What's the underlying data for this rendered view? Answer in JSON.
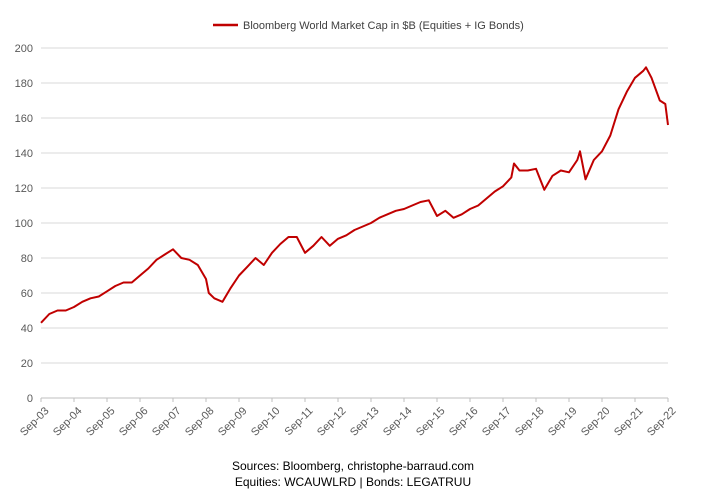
{
  "chart_data": {
    "type": "line",
    "series": [
      {
        "name": "Bloomberg World Market Cap in $B (Equities + IG Bonds)",
        "color": "#c00000",
        "points": [
          [
            "2003-09",
            43
          ],
          [
            "2003-12",
            48
          ],
          [
            "2004-03",
            50
          ],
          [
            "2004-06",
            50
          ],
          [
            "2004-09",
            52
          ],
          [
            "2004-12",
            55
          ],
          [
            "2005-03",
            57
          ],
          [
            "2005-06",
            58
          ],
          [
            "2005-09",
            61
          ],
          [
            "2005-12",
            64
          ],
          [
            "2006-03",
            66
          ],
          [
            "2006-06",
            66
          ],
          [
            "2006-09",
            70
          ],
          [
            "2006-12",
            74
          ],
          [
            "2007-03",
            79
          ],
          [
            "2007-06",
            82
          ],
          [
            "2007-09",
            85
          ],
          [
            "2007-12",
            80
          ],
          [
            "2008-03",
            79
          ],
          [
            "2008-06",
            76
          ],
          [
            "2008-09",
            68
          ],
          [
            "2008-10",
            60
          ],
          [
            "2008-12",
            57
          ],
          [
            "2009-03",
            55
          ],
          [
            "2009-06",
            63
          ],
          [
            "2009-09",
            70
          ],
          [
            "2009-12",
            75
          ],
          [
            "2010-03",
            80
          ],
          [
            "2010-06",
            76
          ],
          [
            "2010-09",
            83
          ],
          [
            "2010-12",
            88
          ],
          [
            "2011-03",
            92
          ],
          [
            "2011-06",
            92
          ],
          [
            "2011-09",
            83
          ],
          [
            "2011-12",
            87
          ],
          [
            "2012-03",
            92
          ],
          [
            "2012-06",
            87
          ],
          [
            "2012-09",
            91
          ],
          [
            "2012-12",
            93
          ],
          [
            "2013-03",
            96
          ],
          [
            "2013-06",
            98
          ],
          [
            "2013-09",
            100
          ],
          [
            "2013-12",
            103
          ],
          [
            "2014-03",
            105
          ],
          [
            "2014-06",
            107
          ],
          [
            "2014-09",
            108
          ],
          [
            "2014-12",
            110
          ],
          [
            "2015-03",
            112
          ],
          [
            "2015-06",
            113
          ],
          [
            "2015-09",
            104
          ],
          [
            "2015-12",
            107
          ],
          [
            "2016-03",
            103
          ],
          [
            "2016-06",
            105
          ],
          [
            "2016-09",
            108
          ],
          [
            "2016-12",
            110
          ],
          [
            "2017-03",
            114
          ],
          [
            "2017-06",
            118
          ],
          [
            "2017-09",
            121
          ],
          [
            "2017-12",
            126
          ],
          [
            "2018-01",
            134
          ],
          [
            "2018-03",
            130
          ],
          [
            "2018-06",
            130
          ],
          [
            "2018-09",
            131
          ],
          [
            "2018-12",
            119
          ],
          [
            "2019-03",
            127
          ],
          [
            "2019-06",
            130
          ],
          [
            "2019-09",
            129
          ],
          [
            "2019-12",
            136
          ],
          [
            "2020-01",
            141
          ],
          [
            "2020-03",
            125
          ],
          [
            "2020-06",
            136
          ],
          [
            "2020-09",
            141
          ],
          [
            "2020-12",
            150
          ],
          [
            "2021-03",
            165
          ],
          [
            "2021-06",
            175
          ],
          [
            "2021-09",
            183
          ],
          [
            "2021-12",
            187
          ],
          [
            "2022-01",
            189
          ],
          [
            "2022-03",
            183
          ],
          [
            "2022-06",
            170
          ],
          [
            "2022-08",
            168
          ],
          [
            "2022-09",
            156
          ]
        ]
      }
    ],
    "x_tick_labels": [
      "Sep-03",
      "Sep-04",
      "Sep-05",
      "Sep-06",
      "Sep-07",
      "Sep-08",
      "Sep-09",
      "Sep-10",
      "Sep-11",
      "Sep-12",
      "Sep-13",
      "Sep-14",
      "Sep-15",
      "Sep-16",
      "Sep-17",
      "Sep-18",
      "Sep-19",
      "Sep-20",
      "Sep-21",
      "Sep-22"
    ],
    "y_ticks": [
      0,
      20,
      40,
      60,
      80,
      100,
      120,
      140,
      160,
      180,
      200
    ],
    "xlim": [
      "2003-09",
      "2022-09"
    ],
    "ylim": [
      0,
      200
    ],
    "grid": true,
    "legend_position": "top-center",
    "title": "",
    "xlabel": "",
    "ylabel": ""
  },
  "footer": {
    "sources": "Sources: Bloomberg, christophe-barraud.com",
    "tickers": "Equities: WCAUWLRD | Bonds: LEGATRUU"
  }
}
